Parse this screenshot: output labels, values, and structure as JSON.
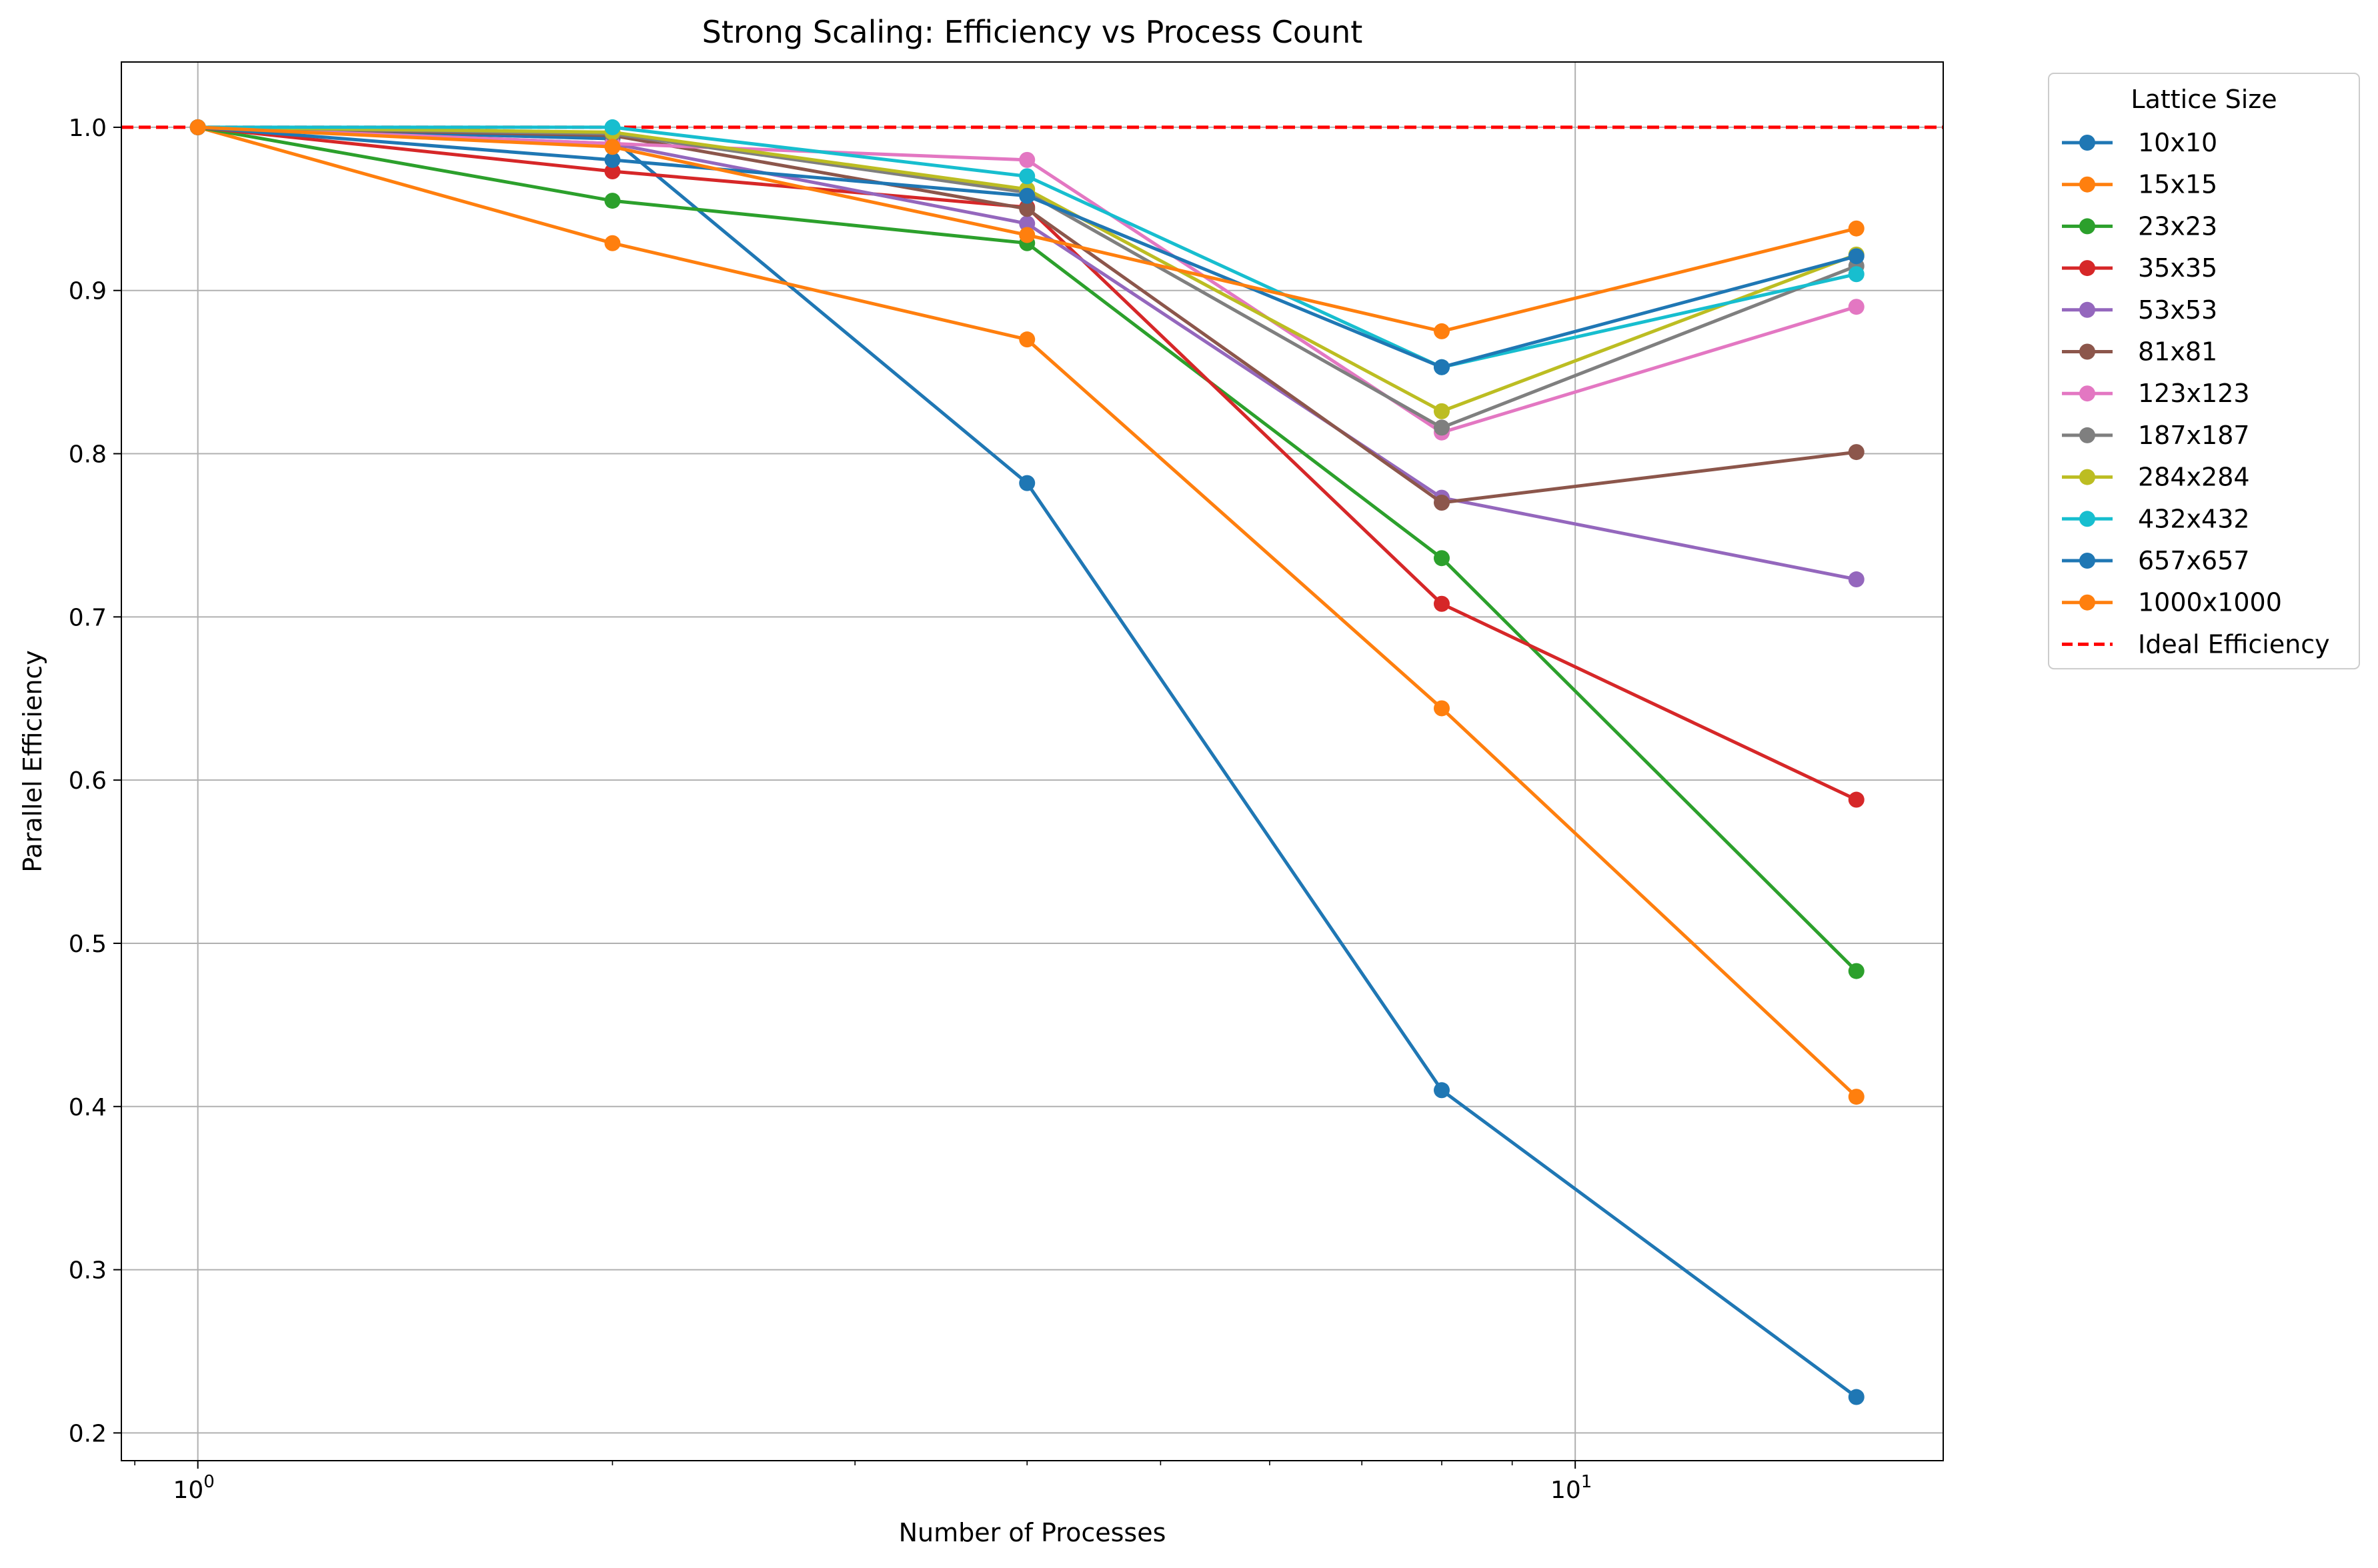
{
  "chart_data": {
    "type": "line",
    "title": "Strong Scaling: Efficiency vs Process Count",
    "xlabel": "Number of Processes",
    "ylabel": "Parallel Efficiency",
    "xscale": "log",
    "x": [
      1,
      2,
      4,
      8,
      16
    ],
    "xlim": [
      0.88,
      18.5
    ],
    "ylim": [
      0.183,
      1.04
    ],
    "x_ticks": [
      {
        "value": 1,
        "base": "10",
        "exp": "0"
      },
      {
        "value": 10,
        "base": "10",
        "exp": "1"
      }
    ],
    "y_ticks": [
      0.2,
      0.3,
      0.4,
      0.5,
      0.6,
      0.7,
      0.8,
      0.9,
      1.0
    ],
    "y_tick_labels": [
      "0.2",
      "0.3",
      "0.4",
      "0.5",
      "0.6",
      "0.7",
      "0.8",
      "0.9",
      "1.0"
    ],
    "grid": true,
    "legend": {
      "title": "Lattice Size",
      "placement": "outside-top-right"
    },
    "series": [
      {
        "name": "10x10",
        "color": "#1f77b4",
        "values": [
          1.0,
          0.993,
          0.782,
          0.41,
          0.222
        ]
      },
      {
        "name": "15x15",
        "color": "#ff7f0e",
        "values": [
          1.0,
          0.929,
          0.87,
          0.644,
          0.406
        ]
      },
      {
        "name": "23x23",
        "color": "#2ca02c",
        "values": [
          1.0,
          0.955,
          0.929,
          0.736,
          0.483
        ]
      },
      {
        "name": "35x35",
        "color": "#d62728",
        "values": [
          1.0,
          0.973,
          0.951,
          0.708,
          0.588
        ]
      },
      {
        "name": "53x53",
        "color": "#9467bd",
        "values": [
          1.0,
          0.99,
          0.941,
          0.773,
          0.723
        ]
      },
      {
        "name": "81x81",
        "color": "#8c564b",
        "values": [
          1.0,
          0.995,
          0.95,
          0.77,
          0.801
        ]
      },
      {
        "name": "123x123",
        "color": "#e377c2",
        "values": [
          1.0,
          0.99,
          0.98,
          0.813,
          0.89
        ]
      },
      {
        "name": "187x187",
        "color": "#7f7f7f",
        "values": [
          1.0,
          0.996,
          0.96,
          0.816,
          0.915
        ]
      },
      {
        "name": "284x284",
        "color": "#bcbd22",
        "values": [
          1.0,
          0.997,
          0.962,
          0.826,
          0.922
        ]
      },
      {
        "name": "432x432",
        "color": "#17becf",
        "values": [
          1.0,
          1.0,
          0.97,
          0.853,
          0.91
        ]
      },
      {
        "name": "657x657",
        "color": "#1f77b4",
        "values": [
          1.0,
          0.98,
          0.958,
          0.853,
          0.921
        ]
      },
      {
        "name": "1000x1000",
        "color": "#ff7f0e",
        "values": [
          1.0,
          0.988,
          0.934,
          0.875,
          0.938
        ]
      }
    ],
    "reference_line": {
      "name": "Ideal Efficiency",
      "value": 1.0,
      "color": "#ff0000",
      "style": "dashed"
    }
  }
}
